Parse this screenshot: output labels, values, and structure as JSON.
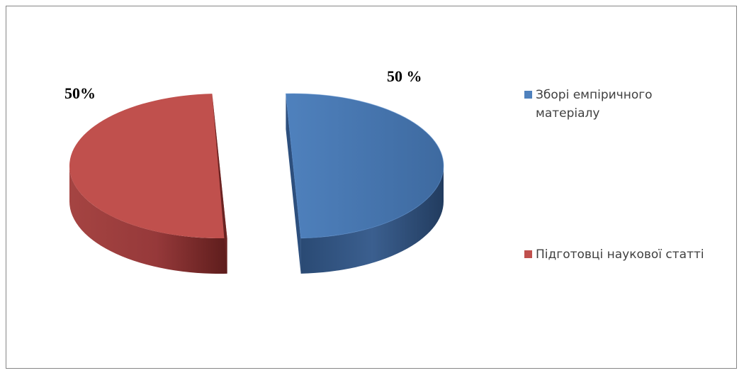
{
  "chart_data": {
    "type": "pie",
    "categories": [
      "Зборі емпіричного матеріалу",
      "Підготовці наукової статті"
    ],
    "values": [
      50,
      50
    ],
    "data_labels": [
      "50 %",
      "50%"
    ],
    "colors": [
      "#4f81bd",
      "#c0504d"
    ],
    "exploded": true,
    "three_d": true,
    "legend_position": "right"
  },
  "legend": {
    "items": [
      {
        "label": "Зборі емпіричного матеріалу",
        "color": "#4f81bd"
      },
      {
        "label": "Підготовці наукової статті",
        "color": "#c0504d"
      }
    ]
  }
}
